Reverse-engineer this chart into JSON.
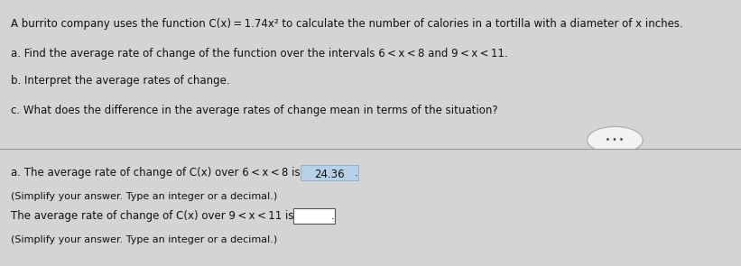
{
  "bg_color_top": "#f4f4f4",
  "bg_color_bottom": "#d4d4d4",
  "divider_color": "#999999",
  "highlight_color": "#b8cfe8",
  "highlight_edge": "#8aaac8",
  "box2_color": "#ffffff",
  "box2_edge": "#555555",
  "text_color": "#111111",
  "top_lines": [
    "A burrito company uses the function C(x) = 1.74x² to calculate the number of calories in a tortilla with a diameter of x inches.",
    "a. Find the average rate of change of the function over the intervals 6 < x < 8 and 9 < x < 11.",
    "b. Interpret the average rates of change.",
    "c. What does the difference in the average rates of change mean in terms of the situation?"
  ],
  "answer_line1_prefix": "a. The average rate of change of C(x) over 6 < x < 8 is ",
  "answer_highlight1": "24.36",
  "answer_line1_suffix": ".",
  "answer_sub1": "(Simplify your answer. Type an integer or a decimal.)",
  "answer_line2_prefix": "The average rate of change of C(x) over 9 < x < 11 is ",
  "answer_line2_suffix": ".",
  "answer_sub2": "(Simplify your answer. Type an integer or a decimal.)",
  "dots_text": "• • •",
  "font_size_main": 8.5,
  "font_size_sub": 8.0,
  "figsize": [
    8.21,
    2.95
  ],
  "dpi": 100
}
